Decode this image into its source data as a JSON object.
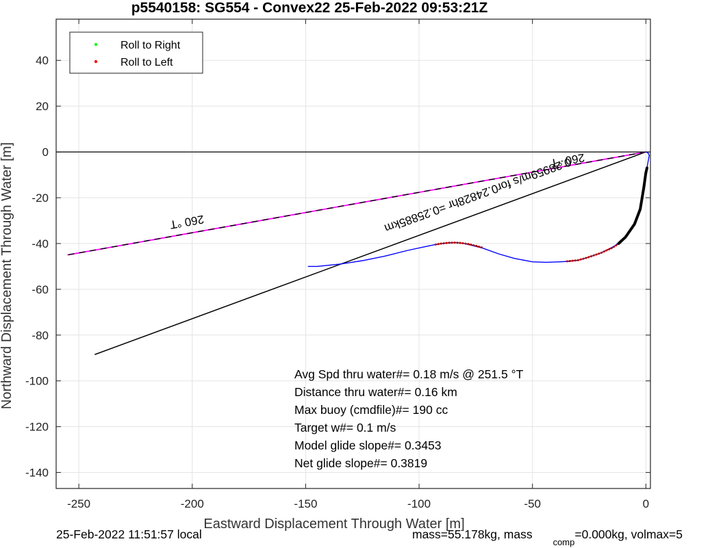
{
  "chart_data": {
    "type": "line",
    "title": "p5540158: SG554 - Convex22 25-Feb-2022 09:53:21Z",
    "xlabel": "Eastward Displacement Through Water [m]",
    "ylabel": "Northward Displacement Through Water [m]",
    "xlim": [
      -260,
      2
    ],
    "ylim": [
      -147,
      58
    ],
    "xticks": [
      -250,
      -200,
      -150,
      -100,
      -50,
      0
    ],
    "yticks": [
      40,
      20,
      0,
      -20,
      -40,
      -60,
      -80,
      -100,
      -120,
      -140
    ],
    "grid": true,
    "legend": {
      "placement": "top-left",
      "entries": [
        {
          "label": "Roll to Right",
          "color": "#00ff00"
        },
        {
          "label": "Roll to Left",
          "color": "#ff0000"
        }
      ]
    },
    "colors": {
      "track": "#0000ff",
      "heading": "#ff00ff",
      "roll_left": "#ff0000",
      "thick": "#000000"
    },
    "lines": {
      "zero_line": {
        "x": [
          -260,
          2
        ],
        "y": [
          0,
          0
        ]
      },
      "heading_line": {
        "x": [
          0,
          -255
        ],
        "y": [
          0,
          -45
        ]
      },
      "current_line": {
        "x": [
          0,
          -243
        ],
        "y": [
          0,
          -88.5
        ]
      }
    },
    "track": {
      "x": [
        -149,
        -145,
        -135,
        -125,
        -115,
        -105,
        -97,
        -92,
        -88,
        -84,
        -80,
        -76,
        -72,
        -65,
        -58,
        -50,
        -44,
        -38,
        -34,
        -30,
        -26,
        -20,
        -14,
        -9,
        -5,
        -2.5,
        -1,
        0,
        0.5,
        1,
        1.5,
        1,
        0
      ],
      "y": [
        -50,
        -50,
        -49,
        -47.5,
        -45.5,
        -43,
        -41.3,
        -40.3,
        -39.8,
        -39.6,
        -40,
        -41,
        -42,
        -44.5,
        -46.5,
        -48,
        -48.2,
        -48,
        -47.8,
        -47.3,
        -46.2,
        -44.2,
        -41.2,
        -37.2,
        -31.5,
        -25,
        -16,
        -9,
        -7,
        -4,
        -1.5,
        -0.5,
        0
      ]
    },
    "roll_left_segments": [
      {
        "x": [
          -93,
          -90,
          -87,
          -84,
          -81,
          -78,
          -75,
          -72
        ],
        "y": [
          -40.5,
          -40,
          -39.7,
          -39.6,
          -39.8,
          -40.3,
          -41,
          -41.8
        ]
      },
      {
        "x": [
          -35,
          -30,
          -26,
          -20,
          -15,
          -11
        ],
        "y": [
          -47.8,
          -47.3,
          -46.2,
          -44.2,
          -42,
          -39.5
        ]
      }
    ],
    "thick_segments": [
      {
        "x": [
          -12,
          -9,
          -5,
          -2.5,
          -1,
          0,
          0.5
        ],
        "y": [
          -40,
          -37.2,
          -31.5,
          -25,
          -16,
          -9,
          -7
        ]
      }
    ],
    "annotations": {
      "heading_far": "260 °T",
      "heading_near": "260 °T",
      "current": "0.28959m/s for0.24828hr =0.25885km"
    },
    "stats": [
      "Avg Spd thru water#=  0.18 m/s @ 251.5        °T",
      "Distance thru water#=  0.16 km",
      "Max buoy (cmdfile)#= 190 cc",
      "Target w#= 0.1 m/s",
      "Model glide slope#= 0.3453",
      "Net glide slope#= 0.3819"
    ],
    "footer": {
      "left": "25-Feb-2022 11:51:57 local",
      "right_a": "mass=55.178kg, mass",
      "right_sub": "comp",
      "right_b": "=0.000kg, volmax=5"
    }
  }
}
